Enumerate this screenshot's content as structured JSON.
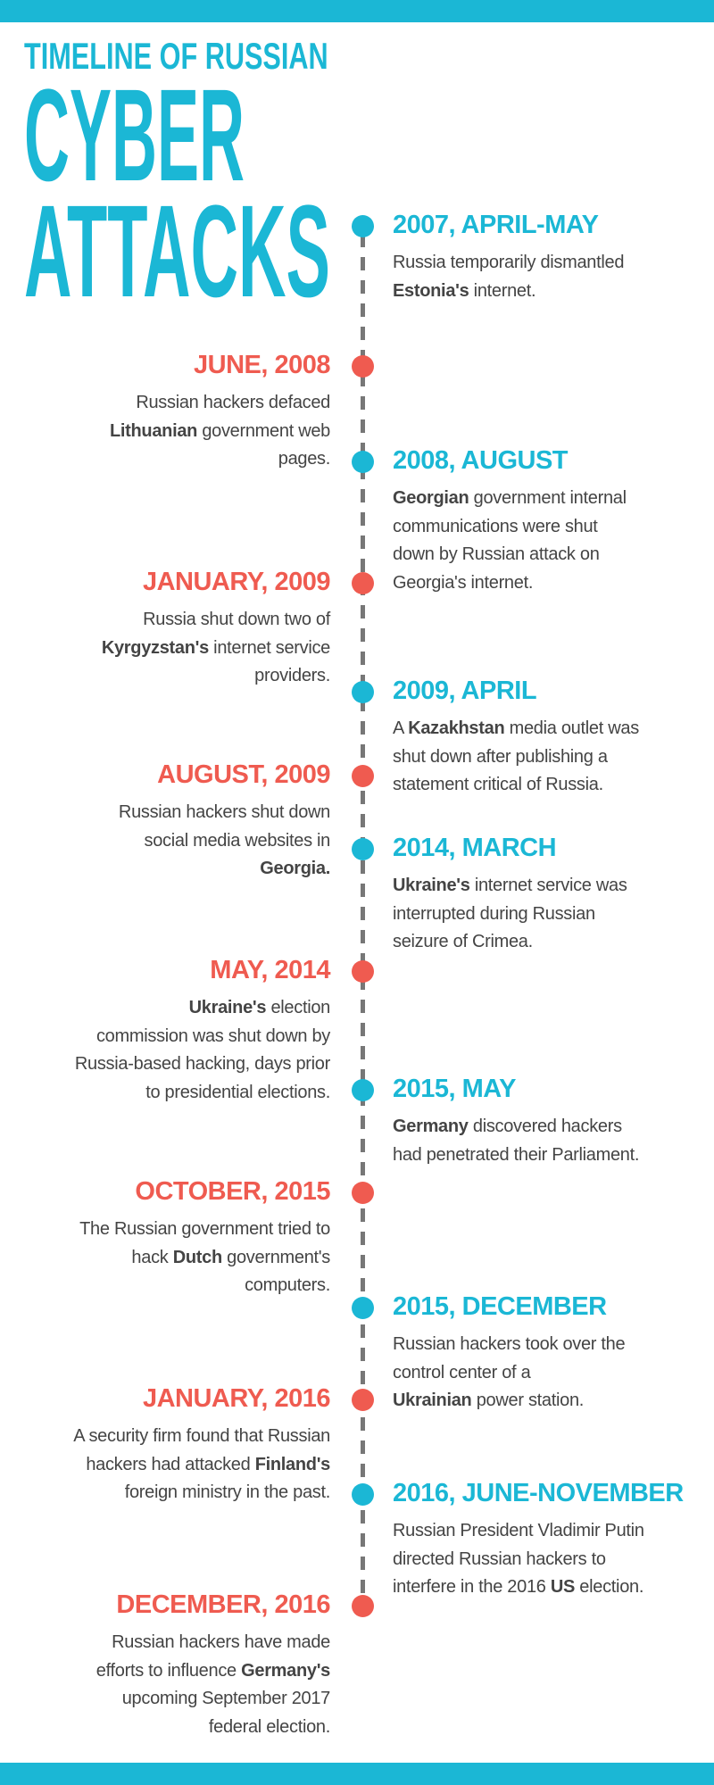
{
  "title": {
    "line1": "TIMELINE OF RUSSIAN",
    "line2": "CYBER",
    "line3": "ATTACKS"
  },
  "colors": {
    "accent": "#1bb7d5",
    "alt": "#ef5b50",
    "text": "#444444",
    "line": "#777777"
  },
  "items": [
    {
      "side": "right",
      "date": "2007, APRIL-MAY",
      "lines": [
        [
          {
            "t": "Russia temporarily dismantled"
          }
        ],
        [
          {
            "t": "Estonia's",
            "b": true
          },
          {
            "t": " internet."
          }
        ]
      ]
    },
    {
      "side": "left",
      "date": "JUNE, 2008",
      "lines": [
        [
          {
            "t": "Russian hackers defaced"
          }
        ],
        [
          {
            "t": "Lithuanian",
            "b": true
          },
          {
            "t": " government web"
          }
        ],
        [
          {
            "t": "pages."
          }
        ]
      ]
    },
    {
      "side": "right",
      "date": "2008, AUGUST",
      "lines": [
        [
          {
            "t": "Georgian",
            "b": true
          },
          {
            "t": " government internal"
          }
        ],
        [
          {
            "t": "communications were shut"
          }
        ],
        [
          {
            "t": "down by Russian attack on"
          }
        ],
        [
          {
            "t": "Georgia's internet."
          }
        ]
      ]
    },
    {
      "side": "left",
      "date": "JANUARY, 2009",
      "lines": [
        [
          {
            "t": "Russia shut down two of"
          }
        ],
        [
          {
            "t": "Kyrgyzstan's",
            "b": true
          },
          {
            "t": " internet service"
          }
        ],
        [
          {
            "t": "providers."
          }
        ]
      ]
    },
    {
      "side": "right",
      "date": "2009, APRIL",
      "lines": [
        [
          {
            "t": "A "
          },
          {
            "t": "Kazakhstan",
            "b": true
          },
          {
            "t": " media outlet was"
          }
        ],
        [
          {
            "t": "shut down after publishing a"
          }
        ],
        [
          {
            "t": "statement critical of Russia."
          }
        ]
      ]
    },
    {
      "side": "left",
      "date": "AUGUST, 2009",
      "lines": [
        [
          {
            "t": "Russian hackers shut down"
          }
        ],
        [
          {
            "t": "social media websites in"
          }
        ],
        [
          {
            "t": "Georgia.",
            "b": true
          }
        ]
      ]
    },
    {
      "side": "right",
      "date": "2014, MARCH",
      "lines": [
        [
          {
            "t": "Ukraine's",
            "b": true
          },
          {
            "t": " internet service was"
          }
        ],
        [
          {
            "t": "interrupted during Russian"
          }
        ],
        [
          {
            "t": "seizure of Crimea."
          }
        ]
      ]
    },
    {
      "side": "left",
      "date": "MAY, 2014",
      "lines": [
        [
          {
            "t": "Ukraine's",
            "b": true
          },
          {
            "t": " election"
          }
        ],
        [
          {
            "t": "commission was shut down by"
          }
        ],
        [
          {
            "t": "Russia-based hacking, days prior"
          }
        ],
        [
          {
            "t": "to presidential elections."
          }
        ]
      ]
    },
    {
      "side": "right",
      "date": "2015, MAY",
      "lines": [
        [
          {
            "t": "Germany",
            "b": true
          },
          {
            "t": " discovered hackers"
          }
        ],
        [
          {
            "t": "had penetrated their Parliament."
          }
        ]
      ]
    },
    {
      "side": "left",
      "date": "OCTOBER, 2015",
      "lines": [
        [
          {
            "t": "The Russian government tried to"
          }
        ],
        [
          {
            "t": "hack "
          },
          {
            "t": "Dutch",
            "b": true
          },
          {
            "t": " government's"
          }
        ],
        [
          {
            "t": "computers."
          }
        ]
      ]
    },
    {
      "side": "right",
      "date": "2015, DECEMBER",
      "lines": [
        [
          {
            "t": "Russian hackers took over the"
          }
        ],
        [
          {
            "t": "control center of a"
          }
        ],
        [
          {
            "t": "Ukrainian",
            "b": true
          },
          {
            "t": " power station."
          }
        ]
      ]
    },
    {
      "side": "left",
      "date": "JANUARY, 2016",
      "lines": [
        [
          {
            "t": "A security firm found that Russian"
          }
        ],
        [
          {
            "t": "hackers had attacked "
          },
          {
            "t": "Finland's",
            "b": true
          }
        ],
        [
          {
            "t": "foreign ministry in the past."
          }
        ]
      ]
    },
    {
      "side": "right",
      "date": "2016, JUNE-NOVEMBER",
      "lines": [
        [
          {
            "t": "Russian President Vladimir Putin"
          }
        ],
        [
          {
            "t": "directed Russian hackers to"
          }
        ],
        [
          {
            "t": "interfere in the 2016 "
          },
          {
            "t": "US",
            "b": true
          },
          {
            "t": " election."
          }
        ]
      ]
    },
    {
      "side": "left",
      "date": "DECEMBER, 2016",
      "lines": [
        [
          {
            "t": "Russian hackers have made"
          }
        ],
        [
          {
            "t": "efforts to influence "
          },
          {
            "t": "Germany's",
            "b": true
          }
        ],
        [
          {
            "t": "upcoming September 2017"
          }
        ],
        [
          {
            "t": "federal election."
          }
        ]
      ]
    }
  ]
}
